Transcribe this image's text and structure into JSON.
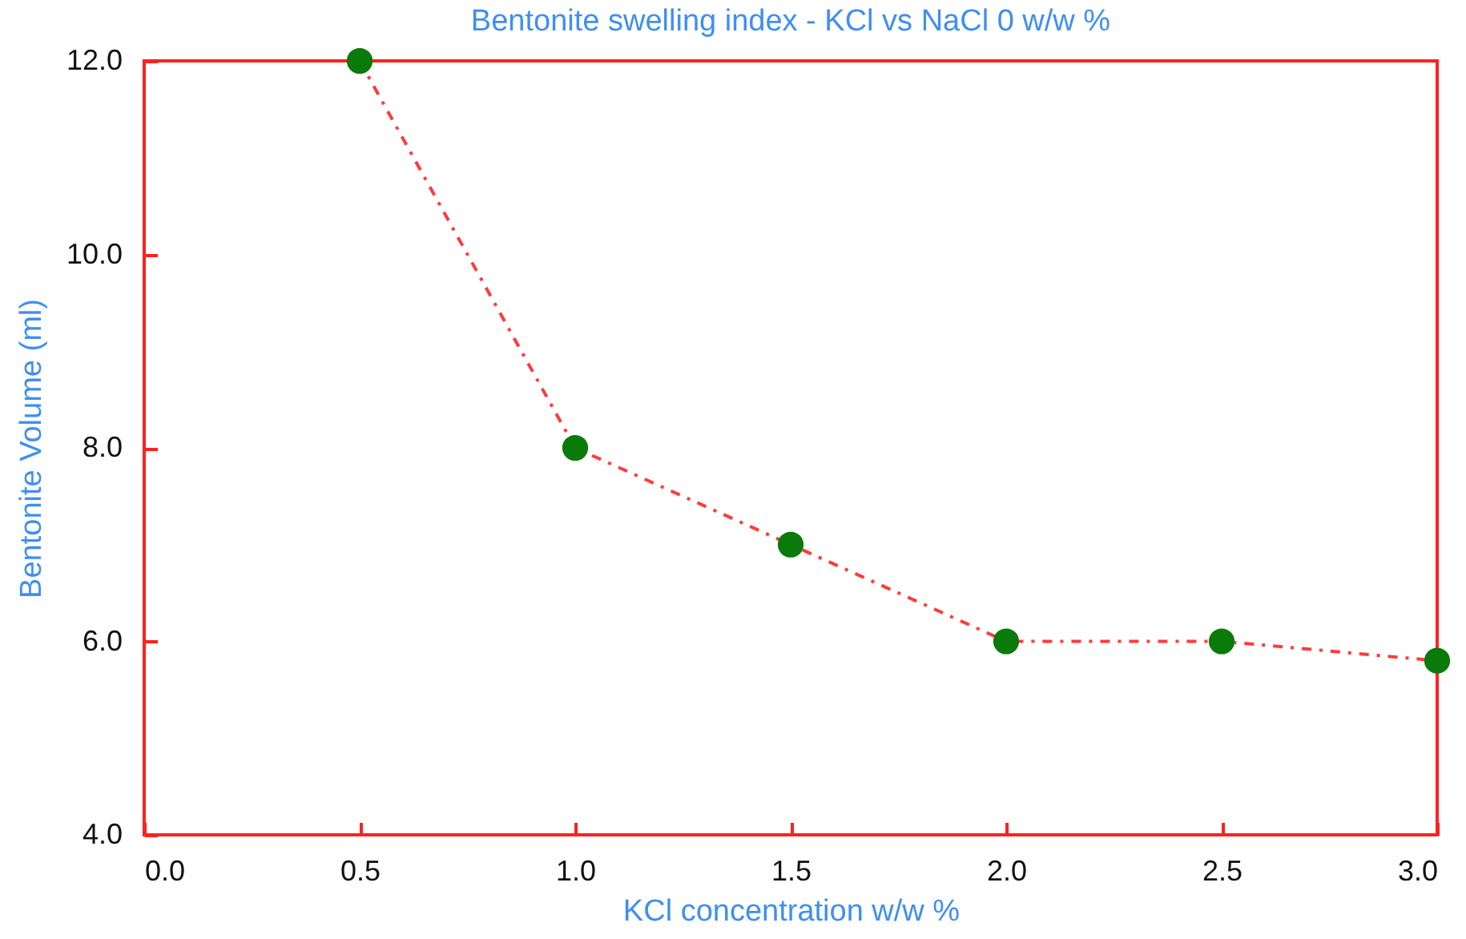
{
  "chart_data": {
    "type": "line",
    "title": "Bentonite swelling index - KCl vs NaCl 0 w/w %",
    "xlabel": "KCl concentration w/w %",
    "ylabel": "Bentonite Volume (ml)",
    "x": [
      0.5,
      1.0,
      1.5,
      2.0,
      2.5,
      3.0
    ],
    "series": [
      {
        "color": "#ff3b3b",
        "colors": [
          "#0a7a0a",
          "#0a7a0a",
          "#0a7a0a",
          "#0a7a0a",
          "#0a7a0a",
          "#0a7a0a"
        ],
        "values": [
          12.0,
          8.0,
          7.0,
          6.0,
          6.0,
          5.8
        ]
      }
    ],
    "marker": "circle",
    "line_style": "dotted",
    "grid": false,
    "xlim": [
      0.0,
      3.0
    ],
    "xticks": [
      {
        "value": 0,
        "label": "0.0"
      },
      {
        "value": 0.5,
        "label": "0.5"
      },
      {
        "value": 1,
        "label": "1.0"
      },
      {
        "value": 1.5,
        "label": "1.5"
      },
      {
        "value": 2,
        "label": "2.0"
      },
      {
        "value": 2.5,
        "label": "2.5"
      },
      {
        "value": 3,
        "label": "3.0"
      }
    ],
    "ylim": [
      4.0,
      12.0
    ],
    "yticks": [
      {
        "value": 4,
        "label": "4.0"
      },
      {
        "value": 6,
        "label": "6.0"
      },
      {
        "value": 8,
        "label": "8.0"
      },
      {
        "value": 10,
        "label": "10.0"
      },
      {
        "value": 12,
        "label": "12.0"
      }
    ]
  }
}
